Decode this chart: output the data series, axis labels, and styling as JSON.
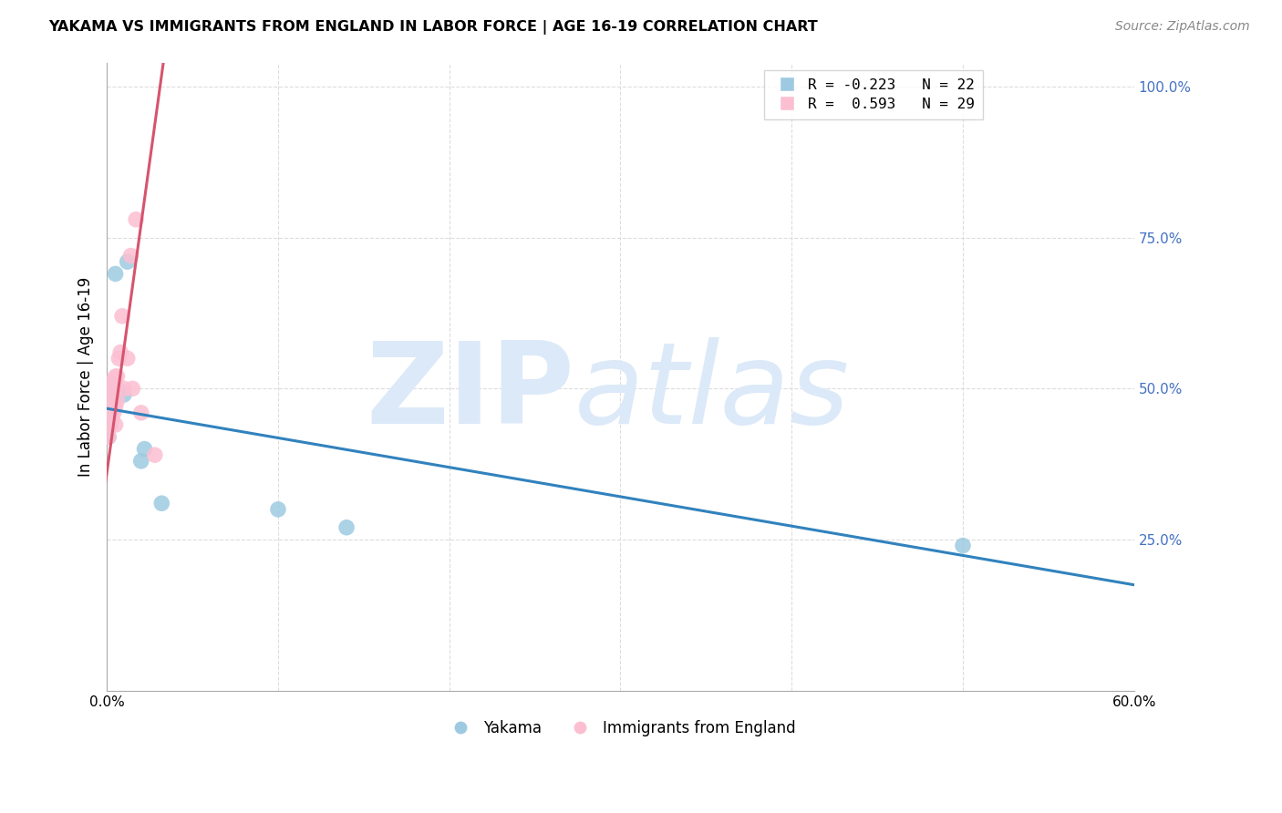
{
  "title": "YAKAMA VS IMMIGRANTS FROM ENGLAND IN LABOR FORCE | AGE 16-19 CORRELATION CHART",
  "source": "Source: ZipAtlas.com",
  "ylabel": "In Labor Force | Age 16-19",
  "xlim": [
    0.0,
    0.6
  ],
  "ylim": [
    0.0,
    1.04
  ],
  "xticks": [
    0.0,
    0.1,
    0.2,
    0.3,
    0.4,
    0.5,
    0.6
  ],
  "xticklabels": [
    "0.0%",
    "",
    "",
    "",
    "",
    "",
    "60.0%"
  ],
  "yticks_right": [
    0.25,
    0.5,
    0.75,
    1.0
  ],
  "ytick_right_labels": [
    "25.0%",
    "50.0%",
    "75.0%",
    "100.0%"
  ],
  "blue_scatter_color": "#9ecae1",
  "pink_scatter_color": "#fcbfd2",
  "blue_line_color": "#3182bd",
  "pink_line_color": "#d6546e",
  "watermark_color": "#dce9f8",
  "legend_blue_label": "R = -0.223   N = 22",
  "legend_pink_label": "R =  0.593   N = 29",
  "legend_bottom_blue": "Yakama",
  "legend_bottom_pink": "Immigrants from England",
  "blue_trend_x0": 0.0,
  "blue_trend_y0": 0.467,
  "blue_trend_x1": 0.6,
  "blue_trend_y1": 0.175,
  "pink_trend_x0": -0.001,
  "pink_trend_y0": 0.34,
  "pink_trend_x1": 0.033,
  "pink_trend_y1": 1.04,
  "blue_x": [
    0.001,
    0.001,
    0.001,
    0.001,
    0.001,
    0.002,
    0.002,
    0.002,
    0.003,
    0.003,
    0.004,
    0.004,
    0.005,
    0.006,
    0.01,
    0.012,
    0.02,
    0.022,
    0.032,
    0.1,
    0.14,
    0.5
  ],
  "blue_y": [
    0.42,
    0.44,
    0.46,
    0.48,
    0.5,
    0.44,
    0.47,
    0.5,
    0.47,
    0.5,
    0.47,
    0.5,
    0.69,
    0.5,
    0.49,
    0.71,
    0.38,
    0.4,
    0.31,
    0.3,
    0.27,
    0.24
  ],
  "pink_x": [
    0.001,
    0.001,
    0.001,
    0.001,
    0.001,
    0.002,
    0.002,
    0.002,
    0.002,
    0.003,
    0.003,
    0.004,
    0.004,
    0.005,
    0.005,
    0.005,
    0.005,
    0.006,
    0.006,
    0.007,
    0.008,
    0.009,
    0.01,
    0.012,
    0.014,
    0.015,
    0.017,
    0.02,
    0.028
  ],
  "pink_y": [
    0.42,
    0.44,
    0.46,
    0.48,
    0.5,
    0.44,
    0.46,
    0.49,
    0.51,
    0.45,
    0.48,
    0.46,
    0.5,
    0.44,
    0.47,
    0.5,
    0.52,
    0.48,
    0.52,
    0.55,
    0.56,
    0.62,
    0.5,
    0.55,
    0.72,
    0.5,
    0.78,
    0.46,
    0.39
  ]
}
